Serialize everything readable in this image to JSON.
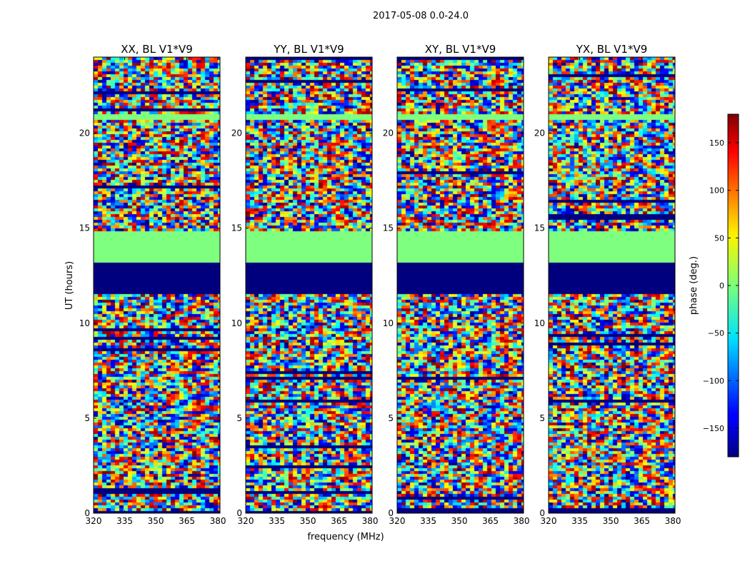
{
  "figure": {
    "suptitle": "2017-05-08 0.0-24.0",
    "xlabel": "frequency (MHz)",
    "ylabel": "UT (hours)"
  },
  "chart_data": {
    "type": "heatmap",
    "title": "2017-05-08 0.0-24.0",
    "xlabel": "frequency (MHz)",
    "ylabel": "UT (hours)",
    "xlim": [
      320,
      381
    ],
    "ylim": [
      0,
      24
    ],
    "x_ticks": [
      320,
      335,
      350,
      365,
      380
    ],
    "y_ticks": [
      0,
      5,
      10,
      15,
      20
    ],
    "panels": [
      {
        "title": "XX, BL V1*V9"
      },
      {
        "title": "YY, BL V1*V9"
      },
      {
        "title": "XY, BL V1*V9"
      },
      {
        "title": "YX, BL V1*V9"
      }
    ],
    "colorbar": {
      "label": "phase (deg.)",
      "colormap": "jet",
      "range": [
        -180,
        180
      ],
      "ticks": [
        150,
        100,
        50,
        0,
        -50,
        -100,
        -150
      ],
      "tick_labels": [
        "150",
        "100",
        "50",
        "0",
        "−50",
        "−100",
        "−150"
      ]
    },
    "flagged_intervals_hours": [
      [
        11.6,
        13.25
      ],
      [
        0.0,
        0.15
      ]
    ],
    "constant_phase_intervals_hours": [
      [
        13.25,
        14.8
      ],
      [
        20.75,
        21.0
      ]
    ],
    "grid": false,
    "colors": {
      "flagged": "#00007f",
      "constant": "#7fff7f"
    }
  }
}
